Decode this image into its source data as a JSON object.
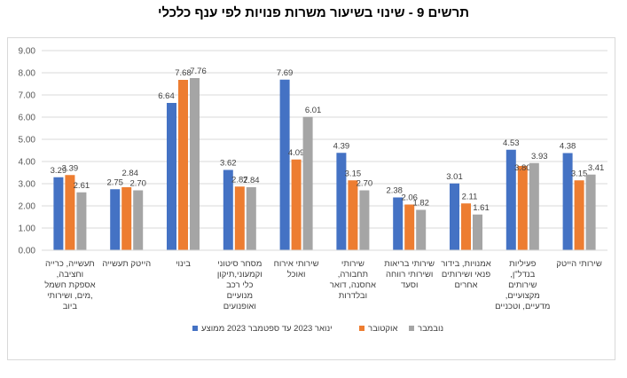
{
  "title": "תרשים 9 - שינוי בשיעור משרות פנויות לפי ענף כלכלי",
  "chart_data": {
    "type": "bar",
    "title": "תרשים 9 - שינוי בשיעור משרות פנויות לפי ענף כלכלי",
    "xlabel": "",
    "ylabel": "",
    "ylim": [
      0,
      9
    ],
    "yticks": [
      "0.00",
      "1.00",
      "2.00",
      "3.00",
      "4.00",
      "5.00",
      "6.00",
      "7.00",
      "8.00",
      "9.00"
    ],
    "grid": true,
    "legend_position": "bottom",
    "categories": [
      [
        "תעשייה, כרייה",
        "וחציבה,",
        "אספקת חשמל",
        ",מים, ושירותי",
        "ביוב"
      ],
      [
        "הייטק תעשייה"
      ],
      [
        "בינוי"
      ],
      [
        "מסחר סיטוני",
        "וקמעוני,תיקון",
        "כלי רכב",
        "מנועיים",
        "ואופנועים"
      ],
      [
        "שירותי אירוח",
        "ואוכל"
      ],
      [
        "שירותי",
        "תחבורה,",
        "אחסנה, דואר",
        "ובלדרות"
      ],
      [
        "שירותי בריאות",
        "ושירותי רווחה",
        "וסעד"
      ],
      [
        "אמנויות, בידור",
        "פנאי ושירותים",
        "אחרים"
      ],
      [
        "פעיליות",
        "בנדל\"ן,",
        "שירותים",
        "מקצועיים,",
        "מדעיים, וטכניים"
      ],
      [
        "שירותי הייטק"
      ]
    ],
    "series": [
      {
        "name": "ינואר 2023 עד ספטמבר 2023 ממוצע",
        "color": "#4472c4",
        "values": [
          3.29,
          2.75,
          6.64,
          3.62,
          7.69,
          4.39,
          2.38,
          3.01,
          4.53,
          4.38
        ]
      },
      {
        "name": "אוקטובר",
        "color": "#ed7d31",
        "values": [
          3.39,
          2.84,
          7.68,
          2.87,
          4.09,
          3.15,
          2.06,
          2.11,
          3.8,
          3.15
        ]
      },
      {
        "name": "נובמבר",
        "color": "#a5a5a5",
        "values": [
          2.61,
          2.7,
          7.76,
          2.84,
          6.01,
          2.7,
          1.82,
          1.61,
          3.93,
          3.41
        ]
      }
    ]
  }
}
